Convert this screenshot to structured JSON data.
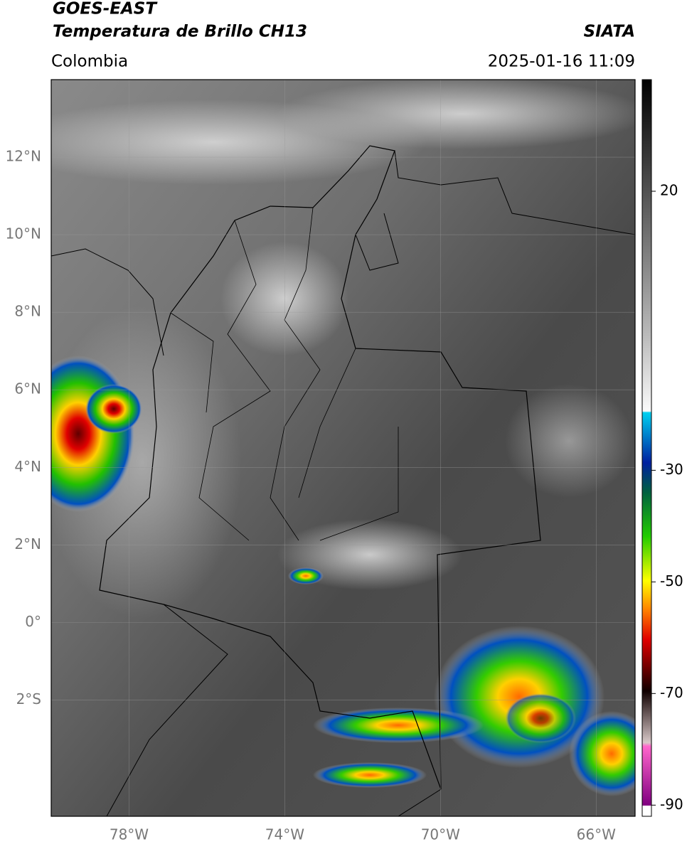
{
  "header": {
    "title_1": "GOES-EAST",
    "title_2": "Temperatura de Brillo CH13",
    "region": "Colombia",
    "source": "SIATA",
    "datetime": "2025-01-16 11:09"
  },
  "map": {
    "lon_range": [
      -80,
      -65
    ],
    "lat_range": [
      -5,
      14
    ],
    "lat_ticks": [
      {
        "value": 12,
        "label": "12°N"
      },
      {
        "value": 10,
        "label": "10°N"
      },
      {
        "value": 8,
        "label": "8°N"
      },
      {
        "value": 6,
        "label": "6°N"
      },
      {
        "value": 4,
        "label": "4°N"
      },
      {
        "value": 2,
        "label": "2°N"
      },
      {
        "value": 0,
        "label": "0°"
      },
      {
        "value": -2,
        "label": "2°S"
      }
    ],
    "lon_ticks": [
      {
        "value": -78,
        "label": "78°W"
      },
      {
        "value": -74,
        "label": "74°W"
      },
      {
        "value": -70,
        "label": "70°W"
      },
      {
        "value": -66,
        "label": "66°W"
      }
    ],
    "grid": true
  },
  "colorbar": {
    "lim": [
      -92,
      40
    ],
    "ticks": [
      20,
      -30,
      -50,
      -70,
      -90
    ]
  }
}
